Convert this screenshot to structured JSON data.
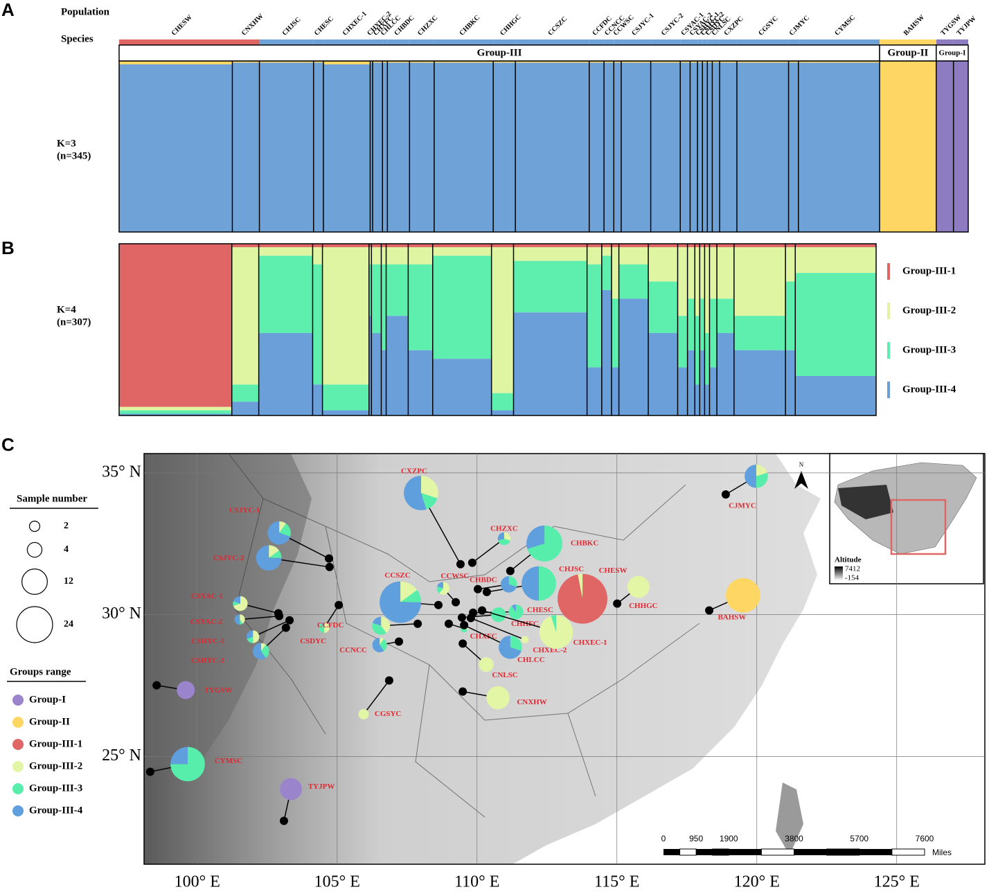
{
  "panels": [
    "A",
    "B",
    "C"
  ],
  "structure": {
    "row_labels": {
      "population": "Population",
      "species": "Species"
    },
    "k3": {
      "label": "K=3",
      "n_label": "(n=345)",
      "colors": [
        "#6fa3d8",
        "#fdd663",
        "#8e7cc3"
      ]
    },
    "k4": {
      "label": "K=4",
      "n_label": "(n=307)",
      "legend": [
        {
          "name": "Group-III-1",
          "color": "#e06666"
        },
        {
          "name": "Group-III-2",
          "color": "#e0f5a2"
        },
        {
          "name": "Group-III-3",
          "color": "#5eeeae"
        },
        {
          "name": "Group-III-4",
          "color": "#6a9fd9"
        }
      ]
    },
    "groups": [
      {
        "label": "Group-III",
        "span": 28
      },
      {
        "label": "Group-II",
        "span": 1
      },
      {
        "label": "Group-I",
        "span": 2
      }
    ],
    "populations": [
      {
        "name": "CHESW",
        "n": 46,
        "species_color": "#e06666",
        "k3": [
          98,
          2,
          0
        ],
        "k4": [
          95,
          2,
          2,
          1
        ]
      },
      {
        "name": "CNXHW",
        "n": 11,
        "species_color": "#e06666",
        "k3": [
          99,
          1,
          0
        ],
        "k4": [
          2,
          80,
          10,
          8
        ]
      },
      {
        "name": "CHJSC",
        "n": 22,
        "species_color": "#6fa3d8",
        "k3": [
          99,
          1,
          0
        ],
        "k4": [
          2,
          5,
          45,
          48
        ]
      },
      {
        "name": "CHESC",
        "n": 4,
        "species_color": "#6fa3d8",
        "k3": [
          99,
          1,
          0
        ],
        "k4": [
          2,
          10,
          70,
          18
        ]
      },
      {
        "name": "CHXEC-1",
        "n": 19,
        "species_color": "#6fa3d8",
        "k3": [
          98,
          2,
          0
        ],
        "k4": [
          2,
          80,
          15,
          3
        ]
      },
      {
        "name": "CHXEC-2",
        "n": 1,
        "species_color": "#6fa3d8",
        "k3": [
          99,
          1,
          0
        ],
        "k4": [
          2,
          10,
          30,
          58
        ]
      },
      {
        "name": "CHXFC",
        "n": 4,
        "species_color": "#6fa3d8",
        "k3": [
          99,
          1,
          0
        ],
        "k4": [
          2,
          10,
          40,
          48
        ]
      },
      {
        "name": "CHLCC",
        "n": 2,
        "species_color": "#6fa3d8",
        "k3": [
          99,
          1,
          0
        ],
        "k4": [
          2,
          10,
          50,
          38
        ]
      },
      {
        "name": "CHBDC",
        "n": 9,
        "species_color": "#6fa3d8",
        "k3": [
          99,
          1,
          0
        ],
        "k4": [
          2,
          10,
          30,
          58
        ]
      },
      {
        "name": "CHZXC",
        "n": 10,
        "species_color": "#6fa3d8",
        "k3": [
          99,
          1,
          0
        ],
        "k4": [
          2,
          10,
          50,
          38
        ]
      },
      {
        "name": "CHBKC",
        "n": 24,
        "species_color": "#6fa3d8",
        "k3": [
          99,
          1,
          0
        ],
        "k4": [
          2,
          5,
          60,
          33
        ]
      },
      {
        "name": "CHHGC",
        "n": 9,
        "species_color": "#6fa3d8",
        "k3": [
          99,
          1,
          0
        ],
        "k4": [
          2,
          85,
          10,
          3
        ]
      },
      {
        "name": "CCSZC",
        "n": 30,
        "species_color": "#6fa3d8",
        "k3": [
          99,
          1,
          0
        ],
        "k4": [
          2,
          8,
          30,
          60
        ]
      },
      {
        "name": "CCFDC",
        "n": 6,
        "species_color": "#6fa3d8",
        "k3": [
          99,
          1,
          0
        ],
        "k4": [
          2,
          10,
          60,
          28
        ]
      },
      {
        "name": "CCNCC",
        "n": 4,
        "species_color": "#6fa3d8",
        "k3": [
          99,
          1,
          0
        ],
        "k4": [
          2,
          5,
          20,
          73
        ]
      },
      {
        "name": "CCWSC",
        "n": 3,
        "species_color": "#6fa3d8",
        "k3": [
          99,
          1,
          0
        ],
        "k4": [
          2,
          30,
          40,
          28
        ]
      },
      {
        "name": "CSJYC-1",
        "n": 12,
        "species_color": "#6fa3d8",
        "k3": [
          99,
          1,
          0
        ],
        "k4": [
          2,
          10,
          20,
          68
        ]
      },
      {
        "name": "CSJYC-2",
        "n": 12,
        "species_color": "#6fa3d8",
        "k3": [
          99,
          1,
          0
        ],
        "k4": [
          2,
          20,
          30,
          48
        ]
      },
      {
        "name": "CSYAC-1",
        "n": 4,
        "species_color": "#6fa3d8",
        "k3": [
          99,
          1,
          0
        ],
        "k4": [
          2,
          40,
          30,
          28
        ]
      },
      {
        "name": "CSYAC-2",
        "n": 3,
        "species_color": "#6fa3d8",
        "k3": [
          99,
          1,
          0
        ],
        "k4": [
          2,
          30,
          30,
          38
        ]
      },
      {
        "name": "CSHYC-1",
        "n": 2,
        "species_color": "#6fa3d8",
        "k3": [
          99,
          1,
          0
        ],
        "k4": [
          2,
          40,
          40,
          18
        ]
      },
      {
        "name": "CSHYC-2",
        "n": 2,
        "species_color": "#6fa3d8",
        "k3": [
          99,
          1,
          0
        ],
        "k4": [
          2,
          30,
          30,
          38
        ]
      },
      {
        "name": "CSDYC",
        "n": 2,
        "species_color": "#6fa3d8",
        "k3": [
          99,
          1,
          0
        ],
        "k4": [
          2,
          50,
          30,
          18
        ]
      },
      {
        "name": "CNLSC",
        "n": 3,
        "species_color": "#6fa3d8",
        "k3": [
          99,
          1,
          0
        ],
        "k4": [
          2,
          30,
          40,
          28
        ]
      },
      {
        "name": "CXZPC",
        "n": 7,
        "species_color": "#6fa3d8",
        "k3": [
          99,
          1,
          0
        ],
        "k4": [
          2,
          30,
          20,
          48
        ]
      },
      {
        "name": "CGSYC",
        "n": 21,
        "species_color": "#6fa3d8",
        "k3": [
          99,
          1,
          0
        ],
        "k4": [
          2,
          40,
          20,
          38
        ]
      },
      {
        "name": "CJMYC",
        "n": 4,
        "species_color": "#6fa3d8",
        "k3": [
          99,
          1,
          0
        ],
        "k4": [
          2,
          20,
          40,
          38
        ]
      },
      {
        "name": "CYMSC",
        "n": 33,
        "species_color": "#6fa3d8",
        "k3": [
          99,
          1,
          0
        ],
        "k4": [
          2,
          15,
          60,
          23
        ]
      },
      {
        "name": "BAHSW",
        "n": 23,
        "species_color": "#fdd663",
        "k3": [
          0,
          100,
          0
        ]
      },
      {
        "name": "TYGSW",
        "n": 7,
        "species_color": "#8e7cc3",
        "k3": [
          0,
          0,
          100
        ]
      },
      {
        "name": "TYJPW",
        "n": 6,
        "species_color": "#8e7cc3",
        "k3": [
          0,
          0,
          100
        ]
      }
    ]
  },
  "map": {
    "xlim": [
      98.1,
      128.15
    ],
    "ylim": [
      21.2,
      35.68
    ],
    "xticks": [
      {
        "value": 100,
        "label": "100° E"
      },
      {
        "value": 105,
        "label": "105° E"
      },
      {
        "value": 110,
        "label": "110° E"
      },
      {
        "value": 115,
        "label": "115° E"
      },
      {
        "value": 120,
        "label": "120° E"
      },
      {
        "value": 125,
        "label": "125° E"
      }
    ],
    "yticks": [
      {
        "value": 25,
        "label": "25° N"
      },
      {
        "value": 30,
        "label": "30° N"
      },
      {
        "value": 35,
        "label": "35° N"
      }
    ],
    "grid": true,
    "size_legend": {
      "title": "Sample number",
      "sizes": [
        2,
        4,
        12,
        24
      ]
    },
    "group_legend": {
      "title": "Groups range",
      "items": [
        {
          "name": "Group-I",
          "color": "#9a84cc"
        },
        {
          "name": "Group-II",
          "color": "#fdd663"
        },
        {
          "name": "Group-III-1",
          "color": "#e06666"
        },
        {
          "name": "Group-III-2",
          "color": "#e2f6a6"
        },
        {
          "name": "Group-III-3",
          "color": "#56eeaa"
        },
        {
          "name": "Group-III-4",
          "color": "#5f9fdd"
        }
      ]
    },
    "label_color": "#e3262f",
    "scale_bar": {
      "ticks": [
        0,
        950,
        1900,
        3800,
        5700,
        7600
      ],
      "unit": "Miles"
    },
    "north": "N",
    "inset": {
      "title": "Altitude",
      "max_label": "7412",
      "min_label": "-154"
    },
    "pies": [
      {
        "name": "CXZPC",
        "lon": 108.0,
        "lat": 34.29,
        "site": [
          109.41,
          31.78
        ],
        "n": 22,
        "composition": [
          0,
          0,
          0,
          30,
          15,
          55
        ]
      },
      {
        "name": "CHZXC",
        "lon": 110.97,
        "lat": 32.68,
        "site": [
          109.83,
          31.83
        ],
        "n": 3,
        "composition": [
          0,
          0,
          0,
          30,
          40,
          30
        ]
      },
      {
        "name": "CHBKC",
        "lon": 112.41,
        "lat": 32.51,
        "site": [
          111.19,
          31.54
        ],
        "n": 24,
        "composition": [
          0,
          0,
          0,
          0,
          70,
          30
        ]
      },
      {
        "name": "CHJSC",
        "lon": 112.21,
        "lat": 31.1,
        "site": [
          110.35,
          30.8
        ],
        "n": 22,
        "composition": [
          0,
          0,
          0,
          0,
          50,
          50
        ]
      },
      {
        "name": "CHBDC",
        "lon": 111.14,
        "lat": 31.07,
        "site": [
          110.03,
          30.9
        ],
        "n": 5,
        "composition": [
          0,
          0,
          0,
          0,
          30,
          70
        ]
      },
      {
        "name": "CHESW",
        "lon": 113.77,
        "lat": 30.56,
        "site": [
          113.77,
          30.56
        ],
        "n": 46,
        "composition": [
          0,
          0,
          97,
          3,
          0,
          0
        ]
      },
      {
        "name": "CHHGC",
        "lon": 115.77,
        "lat": 30.98,
        "site": [
          115.01,
          30.39
        ],
        "n": 9,
        "composition": [
          0,
          0,
          0,
          100,
          0,
          0
        ]
      },
      {
        "name": "CJMYC",
        "lon": 119.98,
        "lat": 34.88,
        "site": [
          118.89,
          34.24
        ],
        "n": 10,
        "composition": [
          0,
          0,
          0,
          20,
          30,
          50
        ]
      },
      {
        "name": "BAHSW",
        "lon": 119.51,
        "lat": 30.68,
        "site": [
          118.3,
          30.15
        ],
        "n": 22,
        "composition": [
          0,
          100,
          0,
          0,
          0,
          0
        ]
      },
      {
        "name": "CSJYC-1",
        "lon": 102.93,
        "lat": 32.88,
        "site": [
          104.71,
          31.98
        ],
        "n": 10,
        "composition": [
          0,
          0,
          0,
          10,
          20,
          70
        ]
      },
      {
        "name": "CSJYC-2",
        "lon": 102.56,
        "lat": 32.0,
        "site": [
          104.73,
          31.68
        ],
        "n": 12,
        "composition": [
          0,
          0,
          0,
          15,
          10,
          75
        ]
      },
      {
        "name": "CSYAC-1",
        "lon": 101.54,
        "lat": 30.39,
        "site": [
          102.9,
          30.05
        ],
        "n": 4,
        "composition": [
          0,
          0,
          0,
          70,
          10,
          20
        ]
      },
      {
        "name": "CSYAC-2",
        "lon": 101.52,
        "lat": 29.83,
        "site": [
          102.93,
          29.95
        ],
        "n": 2,
        "composition": [
          0,
          0,
          0,
          40,
          10,
          50
        ]
      },
      {
        "name": "CSHYC-1",
        "lon": 101.99,
        "lat": 29.22,
        "site": [
          103.3,
          29.8
        ],
        "n": 3,
        "composition": [
          0,
          0,
          0,
          50,
          20,
          30
        ]
      },
      {
        "name": "CSHYC-2",
        "lon": 102.28,
        "lat": 28.71,
        "site": [
          103.17,
          29.54
        ],
        "n": 5,
        "composition": [
          0,
          0,
          0,
          10,
          30,
          60
        ]
      },
      {
        "name": "CSDYC",
        "lon": 104.54,
        "lat": 29.54,
        "site": [
          105.06,
          30.34
        ],
        "n": 2,
        "composition": [
          0,
          0,
          0,
          50,
          40,
          10
        ]
      },
      {
        "name": "CCSZC",
        "lon": 107.26,
        "lat": 30.44,
        "site": [
          108.62,
          30.34
        ],
        "n": 32,
        "composition": [
          0,
          0,
          0,
          15,
          10,
          75
        ]
      },
      {
        "name": "CCWSC",
        "lon": 108.79,
        "lat": 30.93,
        "site": [
          109.24,
          30.44
        ],
        "n": 3,
        "composition": [
          0,
          0,
          0,
          60,
          20,
          20
        ]
      },
      {
        "name": "CCFDC",
        "lon": 106.57,
        "lat": 29.61,
        "site": [
          107.88,
          29.68
        ],
        "n": 6,
        "composition": [
          0,
          0,
          0,
          40,
          40,
          20
        ]
      },
      {
        "name": "CCNCC",
        "lon": 106.52,
        "lat": 28.93,
        "site": [
          107.21,
          29.05
        ],
        "n": 4,
        "composition": [
          0,
          0,
          0,
          10,
          30,
          60
        ]
      },
      {
        "name": "CHXFC",
        "lon": 109.54,
        "lat": 29.51,
        "site": [
          108.99,
          29.68
        ],
        "n": 1,
        "composition": [
          0,
          0,
          0,
          30,
          70,
          0
        ]
      },
      {
        "name": "CHESC",
        "lon": 111.39,
        "lat": 30.1,
        "site": [
          109.86,
          30.07
        ],
        "n": 4,
        "composition": [
          0,
          0,
          0,
          0,
          90,
          10
        ]
      },
      {
        "name": "CHHFC",
        "lon": 110.77,
        "lat": 30.0,
        "site": [
          109.46,
          29.9
        ],
        "n": 4,
        "composition": [
          0,
          0,
          0,
          0,
          100,
          0
        ]
      },
      {
        "name": "CHXEC-2",
        "lon": 111.71,
        "lat": 29.12,
        "site": [
          109.78,
          29.88
        ],
        "n": 1,
        "composition": [
          0,
          0,
          0,
          100,
          0,
          0
        ]
      },
      {
        "name": "CHXEC-1",
        "lon": 112.83,
        "lat": 29.39,
        "site": [
          110.18,
          30.15
        ],
        "n": 21,
        "composition": [
          0,
          0,
          0,
          95,
          5,
          0
        ]
      },
      {
        "name": "CHLCC",
        "lon": 111.19,
        "lat": 28.85,
        "site": [
          109.54,
          29.63
        ],
        "n": 10,
        "composition": [
          0,
          0,
          0,
          0,
          30,
          70
        ]
      },
      {
        "name": "CNLSC",
        "lon": 110.33,
        "lat": 28.24,
        "site": [
          109.49,
          28.98
        ],
        "n": 4,
        "composition": [
          0,
          0,
          0,
          100,
          0,
          0
        ]
      },
      {
        "name": "CNXHW",
        "lon": 110.75,
        "lat": 27.07,
        "site": [
          109.49,
          27.29
        ],
        "n": 10,
        "composition": [
          0,
          0,
          0,
          100,
          0,
          0
        ]
      },
      {
        "name": "CGSYC",
        "lon": 105.95,
        "lat": 26.49,
        "site": [
          106.86,
          27.68
        ],
        "n": 2,
        "composition": [
          0,
          0,
          0,
          100,
          0,
          0
        ]
      },
      {
        "name": "TYGSW",
        "lon": 99.59,
        "lat": 27.34,
        "site": [
          98.55,
          27.51
        ],
        "n": 6,
        "composition": [
          100,
          0,
          0,
          0,
          0,
          0
        ]
      },
      {
        "name": "CYMSC",
        "lon": 99.66,
        "lat": 24.73,
        "site": [
          98.32,
          24.46
        ],
        "n": 22,
        "composition": [
          0,
          0,
          0,
          0,
          75,
          25
        ]
      },
      {
        "name": "TYJPW",
        "lon": 103.35,
        "lat": 23.85,
        "site": [
          103.1,
          22.73
        ],
        "n": 9,
        "composition": [
          100,
          0,
          0,
          0,
          0,
          0
        ]
      }
    ]
  }
}
